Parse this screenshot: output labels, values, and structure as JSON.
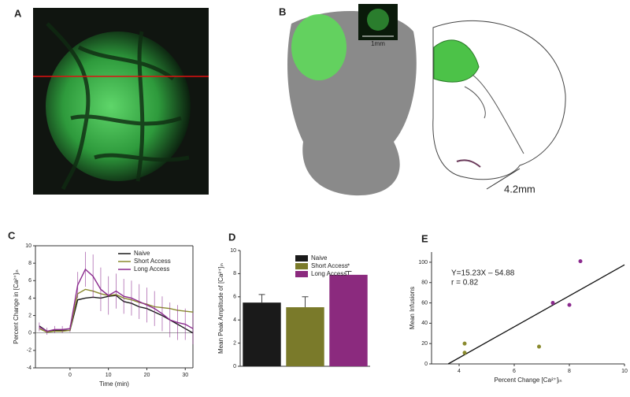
{
  "figure": {
    "panel_labels": [
      "A",
      "B",
      "C",
      "D",
      "E"
    ],
    "scale_bar": "1mm",
    "depth_label": "4.2mm"
  },
  "chart_data": [
    {
      "type": "line",
      "xlabel": "Time (min)",
      "ylabel": "Percent Change in [Ca²⁺]ᵢₙ",
      "x": [
        -8,
        -6,
        -4,
        -2,
        0,
        2,
        4,
        6,
        8,
        10,
        12,
        14,
        16,
        18,
        20,
        22,
        24,
        26,
        28,
        30,
        32
      ],
      "xlim": [
        -9,
        32
      ],
      "xticks": [
        0,
        10,
        20,
        30
      ],
      "ylim": [
        -4,
        10
      ],
      "yticks": [
        -4,
        -2,
        0,
        2,
        4,
        6,
        8,
        10
      ],
      "legend": "upper right",
      "series": [
        {
          "name": "Naive",
          "color": "#1a1a1a",
          "values": [
            0.8,
            0.2,
            0.3,
            0.3,
            0.3,
            3.8,
            4.0,
            4.1,
            4.0,
            4.2,
            4.3,
            3.6,
            3.4,
            3.0,
            2.8,
            2.4,
            2.0,
            1.5,
            1.0,
            0.5,
            0.0
          ]
        },
        {
          "name": "Short Access",
          "color": "#8a8a2e",
          "values": [
            0.5,
            0.1,
            0.2,
            0.2,
            0.3,
            4.5,
            5.0,
            4.8,
            4.5,
            4.3,
            4.4,
            4.0,
            3.8,
            3.5,
            3.3,
            3.0,
            2.9,
            2.8,
            2.6,
            2.5,
            2.4
          ]
        },
        {
          "name": "Long Access",
          "color": "#8b2a8e",
          "values": [
            0.7,
            0.2,
            0.4,
            0.4,
            0.5,
            5.5,
            7.3,
            6.5,
            5.0,
            4.3,
            4.8,
            4.2,
            4.0,
            3.6,
            3.2,
            2.8,
            2.2,
            1.5,
            1.2,
            1.0,
            0.5
          ],
          "errors": [
            0.5,
            0.4,
            0.4,
            0.4,
            0.4,
            1.5,
            2.0,
            2.5,
            2.5,
            2.2,
            2.0,
            2.0,
            2.0,
            2.0,
            2.0,
            2.0,
            2.0,
            2.0,
            2.0,
            1.8,
            1.8
          ]
        }
      ]
    },
    {
      "type": "bar",
      "ylabel": "Mean Peak Amplitude of [Ca²⁺]ᵢₙ",
      "categories": [
        "Naive",
        "Short Access",
        "Long Access"
      ],
      "values": [
        5.5,
        5.1,
        7.9
      ],
      "errors": [
        0.7,
        0.9,
        0.3
      ],
      "colors": [
        "#1a1a1a",
        "#7a7a2a",
        "#8b2a7e"
      ],
      "ylim": [
        0,
        10
      ],
      "yticks": [
        0,
        2,
        4,
        6,
        8,
        10
      ],
      "legend": "upper right",
      "annotation": "*"
    },
    {
      "type": "scatter",
      "xlabel": "Percent Change [Ca²⁺]ᵢₙ",
      "ylabel": "Mean Infusions",
      "x": [
        4.2,
        4.2,
        6.9,
        7.4,
        8.0,
        8.4
      ],
      "values": [
        11,
        20,
        17,
        60,
        58,
        101
      ],
      "colors": [
        "#8a8a2e",
        "#8a8a2e",
        "#8a8a2e",
        "#8b2a8e",
        "#8b2a8e",
        "#8b2a8e"
      ],
      "xlim": [
        3,
        10
      ],
      "xticks": [
        4,
        6,
        8,
        10
      ],
      "ylim": [
        0,
        110
      ],
      "yticks": [
        0,
        20,
        40,
        60,
        80,
        100
      ],
      "fit": {
        "slope": 15.23,
        "intercept": -54.88
      },
      "annotations": [
        "Y=15.23X – 54.88",
        "r = 0.82"
      ]
    }
  ]
}
